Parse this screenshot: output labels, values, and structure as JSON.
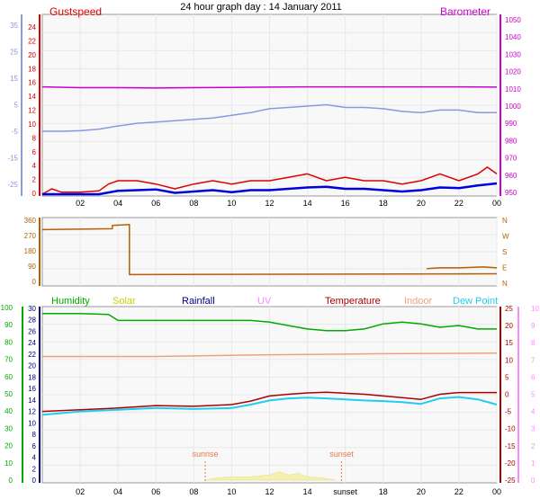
{
  "title": "24 hour graph day : 14 January 2011",
  "x_axis": {
    "tick_labels": [
      "02",
      "04",
      "06",
      "08",
      "10",
      "12",
      "14",
      "16",
      "18",
      "20",
      "22",
      "00"
    ],
    "bottom_tick_labels": [
      "02",
      "04",
      "06",
      "08",
      "10",
      "12",
      "14",
      "sunset",
      "18",
      "20",
      "22",
      "00"
    ]
  },
  "colors": {
    "gust": "#dd0000",
    "wind": "#0000dd",
    "barometer": "#cc00cc",
    "temp_small": "#8899dd",
    "direction": "#b45f06",
    "humidity": "#00aa00",
    "solar": "#cccc00",
    "rainfall": "#000080",
    "uv": "#ff88ff",
    "temperature": "#aa0000",
    "indoor": "#f0a080",
    "dewpoint": "#22ccee",
    "grid": "#e8e8e8",
    "plot_bg": "#f8f8f8"
  },
  "chart_data": [
    {
      "type": "line",
      "name": "wind",
      "labels": {
        "left_title": "Gustspeed",
        "right_title": "Barometer"
      },
      "axes": {
        "gust_ticks": [
          "24",
          "22",
          "20",
          "18",
          "16",
          "14",
          "12",
          "10",
          "8",
          "6",
          "4",
          "2",
          "0"
        ],
        "temp_ticks": [
          "35",
          "25",
          "15",
          "5",
          "-5",
          "-15",
          "-25"
        ],
        "baro_ticks": [
          "1050",
          "1040",
          "1030",
          "1020",
          "1010",
          "1000",
          "990",
          "980",
          "970",
          "960",
          "950"
        ],
        "gust_ylim": [
          0,
          25
        ],
        "baro_ylim": [
          947,
          1050
        ]
      },
      "series": [
        {
          "name": "Barometer",
          "axis": "baro",
          "x": [
            0,
            2,
            4,
            6,
            8,
            10,
            12,
            14,
            16,
            18,
            20,
            22,
            24
          ],
          "values": [
            1010,
            1009.5,
            1009.5,
            1009.3,
            1009.5,
            1009.6,
            1009.8,
            1010,
            1010,
            1010,
            1010,
            1010,
            1009.8
          ]
        },
        {
          "axis": "temp",
          "x": [
            0,
            1,
            2,
            3,
            4,
            5,
            6,
            7,
            8,
            9,
            10,
            11,
            12,
            13,
            14,
            15,
            16,
            17,
            18,
            19,
            20,
            21,
            22,
            23,
            24
          ],
          "values": [
            -5,
            -5,
            -4.8,
            -4.2,
            -3,
            -2,
            -1.5,
            -1,
            -0.5,
            0,
            1,
            2,
            3.5,
            4,
            4.5,
            5,
            4,
            4,
            3.5,
            2.5,
            2,
            3,
            3,
            2,
            2
          ]
        },
        {
          "name": "Gustspeed",
          "axis": "gust",
          "x": [
            0,
            0.5,
            1,
            2,
            3,
            3.5,
            4,
            5,
            6,
            7,
            8,
            9,
            10,
            11,
            12,
            13,
            14,
            15,
            16,
            17,
            18,
            19,
            20,
            21,
            22,
            23,
            23.5,
            24
          ],
          "values": [
            0,
            0.8,
            0.3,
            0.3,
            0.5,
            1.5,
            2,
            2,
            1.5,
            0.8,
            1.5,
            2,
            1.5,
            2,
            2,
            2.5,
            3,
            2,
            2.5,
            2,
            2,
            1.5,
            2,
            3,
            2,
            3,
            4,
            3
          ]
        },
        {
          "name": "Wind",
          "axis": "gust",
          "x": [
            0,
            1,
            2,
            3,
            4,
            5,
            6,
            7,
            8,
            9,
            10,
            11,
            12,
            13,
            14,
            15,
            16,
            17,
            18,
            19,
            20,
            21,
            22,
            23,
            24
          ],
          "values": [
            0,
            0,
            0,
            0,
            0.5,
            0.6,
            0.7,
            0.2,
            0.4,
            0.6,
            0.3,
            0.6,
            0.6,
            0.8,
            1,
            1.1,
            0.8,
            0.8,
            0.6,
            0.4,
            0.6,
            1,
            0.9,
            1.3,
            1.6
          ]
        }
      ]
    },
    {
      "type": "line",
      "name": "direction",
      "axes": {
        "ticks": [
          "360",
          "270",
          "180",
          "90",
          "0"
        ],
        "compass": [
          "N",
          "W",
          "S",
          "E",
          "N"
        ],
        "ylim": [
          0,
          360
        ]
      },
      "series": [
        {
          "name": "Direction",
          "x": [
            0,
            3.7,
            3.7,
            4.6,
            4.6,
            24
          ],
          "values": [
            305,
            310,
            330,
            335,
            40,
            45
          ]
        },
        {
          "x": [
            20.3,
            21,
            22,
            23.3,
            24
          ],
          "values": [
            75,
            80,
            80,
            85,
            80
          ]
        }
      ]
    },
    {
      "type": "line",
      "name": "temperature-humidity",
      "labels": {
        "legend": [
          "Humidity",
          "Solar",
          "Rainfall",
          "UV",
          "Temperature",
          "Indoor",
          "Dew Point"
        ],
        "sunrise": "sunrise",
        "sunset": "sunset"
      },
      "axes": {
        "humidity_ticks": [
          "100",
          "90",
          "80",
          "70",
          "60",
          "50",
          "40",
          "30",
          "20",
          "10",
          "0"
        ],
        "rain_ticks": [
          "30",
          "28",
          "26",
          "24",
          "22",
          "20",
          "18",
          "16",
          "14",
          "12",
          "10",
          "8",
          "6",
          "4",
          "2",
          "0"
        ],
        "temp_ticks": [
          "25",
          "20",
          "15",
          "10",
          "5",
          "0",
          "-5",
          "-10",
          "-15",
          "-20",
          "-25"
        ],
        "uv_ticks": [
          "10",
          "9",
          "8",
          "7",
          "6",
          "5",
          "4",
          "3",
          "2",
          "1",
          "0"
        ],
        "humidity_ylim": [
          0,
          100
        ],
        "temp_ylim": [
          -25,
          25
        ]
      },
      "series": [
        {
          "name": "Humidity",
          "axis": "humidity",
          "x": [
            0,
            2,
            3.5,
            4,
            6,
            8,
            10,
            11,
            12,
            13,
            14,
            15,
            16,
            17,
            18,
            19,
            20,
            21,
            22,
            23,
            24
          ],
          "values": [
            97,
            97,
            96.5,
            93,
            93,
            93,
            93,
            93,
            92,
            90,
            88,
            87,
            87,
            88,
            91,
            92,
            91,
            89,
            90,
            88,
            88
          ]
        },
        {
          "name": "Indoor",
          "axis": "temp",
          "x": [
            0,
            6,
            12,
            18,
            24
          ],
          "values": [
            11,
            11,
            11.5,
            11.8,
            12
          ]
        },
        {
          "name": "Temperature",
          "axis": "temp",
          "x": [
            0,
            2,
            4,
            6,
            8,
            10,
            11,
            12,
            13,
            14,
            15,
            16,
            17,
            18,
            19,
            20,
            21,
            22,
            23,
            24
          ],
          "values": [
            -5,
            -4.5,
            -4,
            -3.3,
            -3.5,
            -3,
            -2,
            -0.5,
            0,
            0.4,
            0.6,
            0.3,
            0,
            -0.5,
            -1,
            -1.5,
            0,
            0.5,
            0.5,
            0.5
          ]
        },
        {
          "name": "Dew Point",
          "axis": "temp",
          "x": [
            0,
            2,
            4,
            6,
            8,
            10,
            11,
            12,
            13,
            14,
            15,
            16,
            17,
            18,
            19,
            20,
            21,
            22,
            23,
            24
          ],
          "values": [
            -6,
            -5,
            -4.5,
            -4,
            -4.3,
            -4,
            -3,
            -1.8,
            -1.2,
            -1,
            -1.2,
            -1.5,
            -1.8,
            -2,
            -2.3,
            -2.8,
            -1.2,
            -0.8,
            -1.5,
            -3
          ]
        },
        {
          "name": "Solar",
          "axis": "humidity",
          "x": [
            8.6,
            9,
            10,
            11,
            12,
            12.5,
            13,
            13.5,
            14,
            15,
            15.5
          ],
          "values": [
            0,
            1,
            2,
            2,
            3,
            5,
            3,
            4,
            2,
            1,
            0
          ]
        }
      ]
    }
  ]
}
